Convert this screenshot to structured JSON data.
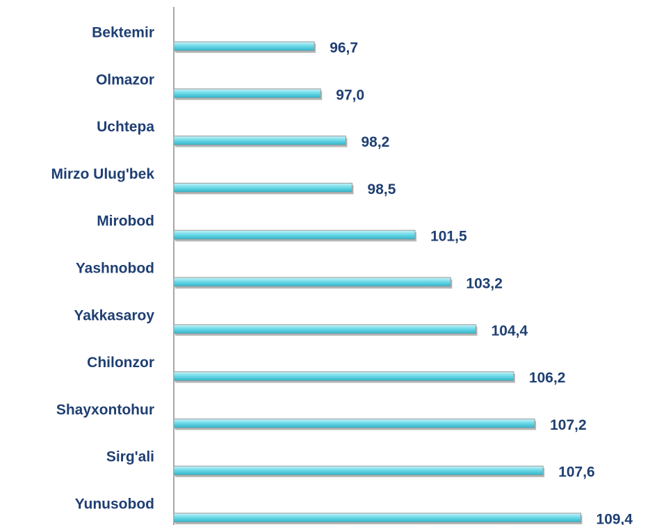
{
  "chart_data": {
    "type": "bar",
    "orientation": "horizontal",
    "categories": [
      "Bektemir",
      "Olmazor",
      "Uchtepa",
      "Mirzo Ulug'bek",
      "Mirobod",
      "Yashnobod",
      "Yakkasaroy",
      "Chilonzor",
      "Shayxontohur",
      "Sirg'ali",
      "Yunusobod"
    ],
    "values": [
      96.7,
      97.0,
      98.2,
      98.5,
      101.5,
      103.2,
      104.4,
      106.2,
      107.2,
      107.6,
      109.4
    ],
    "value_labels": [
      "96,7",
      "97,0",
      "98,2",
      "98,5",
      "101,5",
      "103,2",
      "104,4",
      "106,2",
      "107,2",
      "107,6",
      "109,4"
    ],
    "color": "#5fd3e3",
    "xlim": [
      90,
      112
    ]
  }
}
